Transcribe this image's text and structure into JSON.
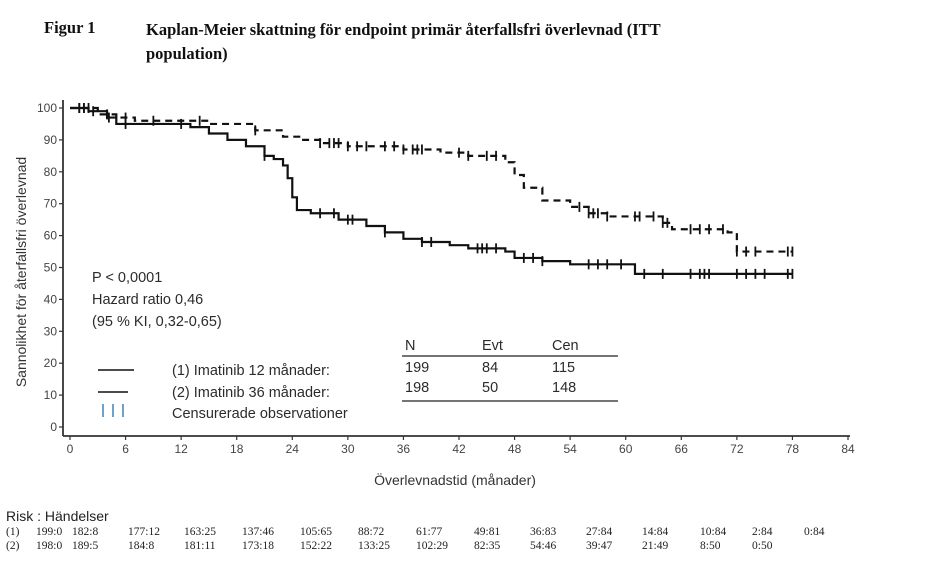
{
  "figure": {
    "label": "Figur 1",
    "title": "Kaplan-Meier skattning för endpoint primär återfallsfri överlevnad (ITT population)"
  },
  "chart_data": {
    "type": "line",
    "subtype": "kaplan-meier step",
    "title": "Kaplan-Meier skattning för endpoint primär återfallsfri överlevnad (ITT population)",
    "xlabel": "Överlevnadstid (månader)",
    "ylabel": "Sannolikhet för återfallsfri överlevnad",
    "xlim": [
      0,
      84
    ],
    "ylim": [
      0,
      100
    ],
    "xticks": [
      "0",
      "6",
      "12",
      "18",
      "24",
      "30",
      "36",
      "42",
      "48",
      "54",
      "60",
      "66",
      "72",
      "78",
      "84"
    ],
    "yticks": [
      "0",
      "10",
      "20",
      "30",
      "40",
      "50",
      "60",
      "70",
      "80",
      "90",
      "100"
    ],
    "grid": false,
    "annotations": [
      "P < 0,0001",
      "Hazard ratio 0,46",
      "(95 % KI, 0,32-0,65)"
    ],
    "legend": {
      "placement": "bottom-left",
      "items": [
        {
          "label": "(1) Imatinib 12 månader:",
          "style": "solid"
        },
        {
          "label": "(2) Imatinib 36 månader:",
          "style": "dashed"
        },
        {
          "label": "Censurerade observationer",
          "style": "censor-ticks",
          "symbol": "| | |"
        }
      ]
    },
    "summary_table": {
      "headers": [
        "N",
        "Evt",
        "Cen"
      ],
      "rows": [
        [
          "199",
          "84",
          "115"
        ],
        [
          "198",
          "50",
          "148"
        ]
      ]
    },
    "series": [
      {
        "name": "(1) Imatinib 12 månader",
        "style": "solid",
        "x": [
          0,
          2,
          4,
          5,
          8,
          13,
          15,
          17,
          19,
          21,
          22,
          23,
          23.5,
          24,
          24.5,
          26,
          29,
          32,
          34,
          36,
          38,
          41,
          43,
          47,
          48,
          51,
          54,
          59,
          61,
          78
        ],
        "y": [
          100,
          99,
          97,
          95,
          95,
          94,
          92,
          90,
          88,
          85,
          84,
          82,
          78,
          72,
          68,
          67,
          65,
          63,
          61,
          59,
          58,
          57,
          56,
          55,
          53,
          52,
          51,
          51,
          48,
          48
        ],
        "censor_x": [
          1,
          1.5,
          2.5,
          4.2,
          6,
          12,
          21,
          27,
          28.5,
          30,
          30.5,
          34,
          38,
          39,
          44,
          44.5,
          45,
          46,
          49,
          50,
          51,
          56,
          57,
          58,
          59.5,
          62,
          64,
          67,
          68,
          68.5,
          69,
          72,
          73,
          74,
          75,
          77.5,
          78
        ]
      },
      {
        "name": "(2) Imatinib 36 månader",
        "style": "dashed",
        "x": [
          0,
          3,
          5,
          7,
          11,
          15,
          20,
          23,
          25,
          27,
          30,
          34,
          36,
          40,
          43,
          47,
          48,
          49,
          51,
          54,
          56,
          58,
          62,
          64,
          65,
          71,
          72,
          78
        ],
        "y": [
          100,
          98,
          97,
          96,
          96,
          95,
          93,
          91,
          90,
          89,
          88,
          88,
          87,
          86,
          85,
          83,
          79,
          75,
          71,
          69,
          67,
          66,
          66,
          64,
          62,
          61,
          55,
          55
        ],
        "censor_x": [
          1,
          1.5,
          2,
          4,
          6,
          9,
          14,
          20,
          27,
          28,
          28.5,
          29,
          30,
          31,
          32,
          34,
          35,
          36,
          37,
          37.5,
          38,
          42,
          43,
          45,
          46,
          55,
          56,
          56.5,
          57,
          58,
          61,
          61.5,
          63,
          64,
          64.5,
          67,
          68,
          69,
          70.5,
          72,
          73,
          74,
          77.5,
          78
        ]
      }
    ]
  },
  "risk_table": {
    "title": "Risk : Händelser",
    "rows": [
      {
        "label": "(1)",
        "values": [
          "199:0",
          "182:8",
          "177:12",
          "163:25",
          "137:46",
          "105:65",
          "88:72",
          "61:77",
          "49:81",
          "36:83",
          "27:84",
          "14:84",
          "10:84",
          "2:84",
          "0:84"
        ]
      },
      {
        "label": "(2)",
        "values": [
          "198:0",
          "189:5",
          "184:8",
          "181:11",
          "173:18",
          "152:22",
          "133:25",
          "102:29",
          "82:35",
          "54:46",
          "39:47",
          "21:49",
          "8:50",
          "0:50"
        ]
      }
    ]
  }
}
